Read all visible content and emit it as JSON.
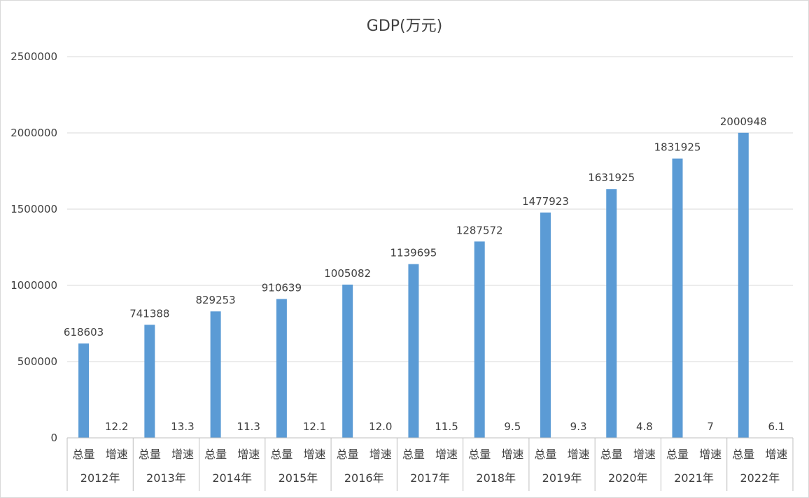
{
  "chart_data": {
    "type": "bar",
    "title": "GDP(万元)",
    "ylim": [
      0,
      2500000
    ],
    "y_ticks": [
      "0",
      "500000",
      "1000000",
      "1500000",
      "2000000",
      "2500000"
    ],
    "grid": true,
    "categories": [
      "2012年",
      "2013年",
      "2014年",
      "2015年",
      "2016年",
      "2017年",
      "2018年",
      "2019年",
      "2020年",
      "2021年",
      "2022年"
    ],
    "subcategories": [
      "总量",
      "增速"
    ],
    "series": [
      {
        "name": "总量",
        "values": [
          618603,
          741388,
          829253,
          910639,
          1005082,
          1139695,
          1287572,
          1477923,
          1631925,
          1831925,
          2000948
        ],
        "labels": [
          "618603",
          "741388",
          "829253",
          "910639",
          "1005082",
          "1139695",
          "1287572",
          "1477923",
          "1631925",
          "1831925",
          "2000948"
        ],
        "color": "#5b9bd5"
      },
      {
        "name": "增速",
        "values": [
          12.2,
          13.3,
          11.3,
          12.1,
          12.0,
          11.5,
          9.5,
          9.3,
          4.8,
          7,
          6.1
        ],
        "labels": [
          "12.2",
          "13.3",
          "11.3",
          "12.1",
          "12.0",
          "11.5",
          "9.5",
          "9.3",
          "4.8",
          "7",
          "6.1"
        ],
        "color": "#5b9bd5"
      }
    ]
  }
}
